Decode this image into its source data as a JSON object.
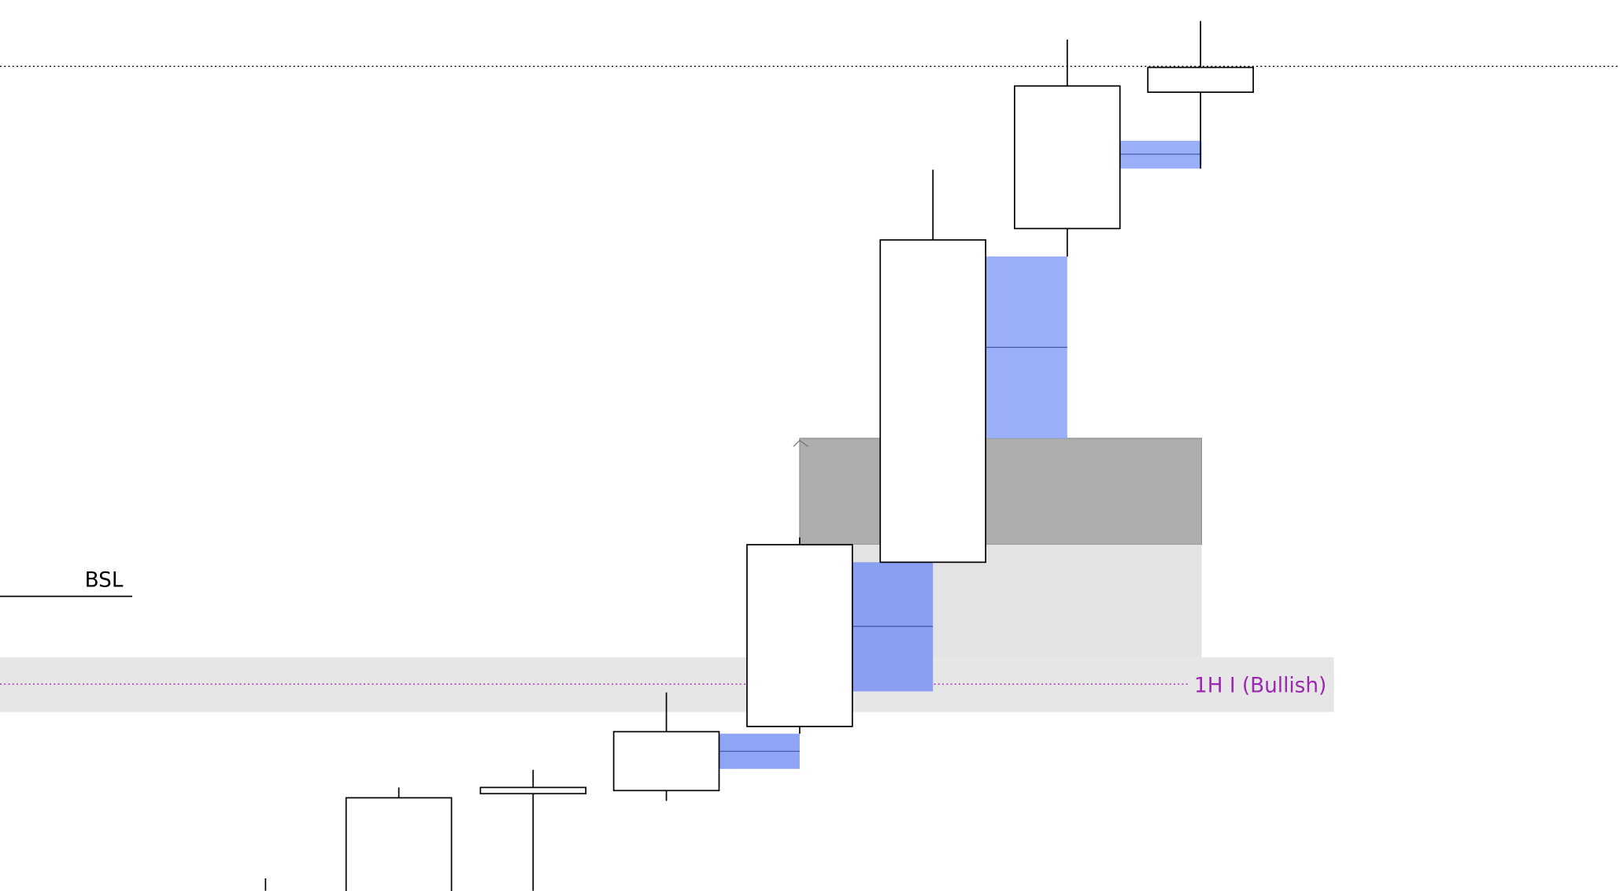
{
  "labels": {
    "bsl": "BSL",
    "zone": "1H I (Bullish)"
  }
}
